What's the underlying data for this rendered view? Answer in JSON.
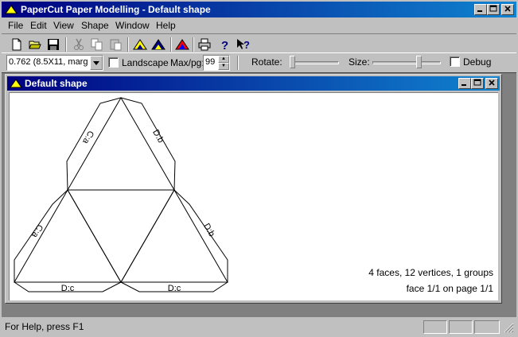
{
  "window": {
    "title": "PaperCut Paper Modelling - Default shape"
  },
  "menu": [
    "File",
    "Edit",
    "View",
    "Shape",
    "Window",
    "Help"
  ],
  "toolbar": {
    "icons": [
      "new-file-icon",
      "open-folder-icon",
      "save-icon",
      "cut-icon",
      "copy-icon",
      "paste-icon",
      "shape-yellow-icon",
      "shape-blue-icon",
      "shape-tri-icon",
      "print-icon",
      "help-icon",
      "context-help-icon"
    ]
  },
  "options": {
    "paper_select": "0.762 (8.5X11, margi",
    "landscape_label": "Landscape",
    "landscape_checked": false,
    "max_per_page_label": "Max/pg:",
    "max_per_page_value": "99",
    "rotate_label": "Rotate:",
    "rotate_level": 0,
    "size_label": "Size:",
    "size_level": 0.7,
    "debug_label": "Debug",
    "debug_checked": false
  },
  "document": {
    "title": "Default shape",
    "summary": "4 faces, 12 vertices, 1 groups",
    "face_page": "face 1/1 on page 1/1",
    "tab_labels": [
      "C:a",
      "D:b",
      "C:a",
      "D:b",
      "D:c",
      "D:c"
    ]
  },
  "status": {
    "help_text": "For Help, press F1"
  },
  "colors": {
    "title_active": "#000080",
    "title_gradient_end": "#1084d0",
    "face": "#c0c0c0",
    "workspace": "#808080"
  }
}
